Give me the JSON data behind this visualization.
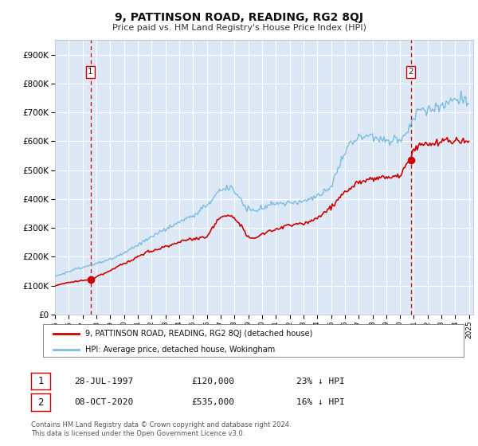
{
  "title": "9, PATTINSON ROAD, READING, RG2 8QJ",
  "subtitle": "Price paid vs. HM Land Registry's House Price Index (HPI)",
  "xlim": [
    1995.0,
    2025.3
  ],
  "ylim": [
    0,
    950000
  ],
  "yticks": [
    0,
    100000,
    200000,
    300000,
    400000,
    500000,
    600000,
    700000,
    800000,
    900000
  ],
  "ytick_labels": [
    "£0",
    "£100K",
    "£200K",
    "£300K",
    "£400K",
    "£500K",
    "£600K",
    "£700K",
    "£800K",
    "£900K"
  ],
  "xticks": [
    1995,
    1996,
    1997,
    1998,
    1999,
    2000,
    2001,
    2002,
    2003,
    2004,
    2005,
    2006,
    2007,
    2008,
    2009,
    2010,
    2011,
    2012,
    2013,
    2014,
    2015,
    2016,
    2017,
    2018,
    2019,
    2020,
    2021,
    2022,
    2023,
    2024,
    2025
  ],
  "sale1_x": 1997.57,
  "sale1_y": 120000,
  "sale2_x": 2020.77,
  "sale2_y": 535000,
  "hpi_color": "#7bbde0",
  "price_color": "#cc0000",
  "vline_color": "#cc0000",
  "legend_label_price": "9, PATTINSON ROAD, READING, RG2 8QJ (detached house)",
  "legend_label_hpi": "HPI: Average price, detached house, Wokingham",
  "annot1_date": "28-JUL-1997",
  "annot1_price": "£120,000",
  "annot1_hpi": "23% ↓ HPI",
  "annot2_date": "08-OCT-2020",
  "annot2_price": "£535,000",
  "annot2_hpi": "16% ↓ HPI",
  "footer1": "Contains HM Land Registry data © Crown copyright and database right 2024.",
  "footer2": "This data is licensed under the Open Government Licence v3.0.",
  "bg_color": "#dce8f5",
  "grid_color": "#ffffff"
}
